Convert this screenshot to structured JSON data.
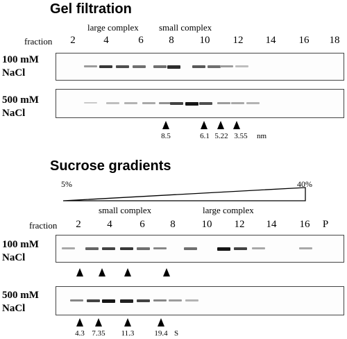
{
  "gel": {
    "title": "Gel filtration",
    "header_large": "large complex",
    "header_small": "small complex",
    "fraction_label": "fraction",
    "fractions": [
      "2",
      "4",
      "6",
      "8",
      "10",
      "12",
      "14",
      "16",
      "18"
    ],
    "lane1": {
      "line1": "100 mM",
      "line2": "NaCl"
    },
    "lane2": {
      "line1": "500 mM",
      "line2": "NaCl"
    },
    "markers": [
      "8.5",
      "6.1",
      "5.22",
      "3.55"
    ],
    "unit": "nm",
    "lane1_bands": [
      0.35,
      0.8,
      0.7,
      0.55,
      0.55,
      0.85,
      0.65,
      0.55,
      0.35,
      0.2
    ],
    "lane2_bands": [
      0.15,
      0.2,
      0.25,
      0.3,
      0.4,
      0.75,
      0.95,
      0.7,
      0.35,
      0.3,
      0.25
    ]
  },
  "sucrose": {
    "title": "Sucrose gradients",
    "gradient_low": "5%",
    "gradient_high": "40%",
    "header_small": "small complex",
    "header_large": "large complex",
    "fraction_label": "fraction",
    "fractions": [
      "2",
      "4",
      "6",
      "8",
      "10",
      "12",
      "14",
      "16",
      "P"
    ],
    "lane1": {
      "line1": "100 mM",
      "line2": "NaCl"
    },
    "lane2": {
      "line1": "500 mM",
      "line2": "NaCl"
    },
    "markers": [
      "4.3",
      "7.35",
      "11.3",
      "19.4"
    ],
    "unit": "S",
    "lane1_bands": [
      0.3,
      0.6,
      0.75,
      0.8,
      0.55,
      0.45,
      0.55,
      0.95,
      0.75,
      0.3,
      0.3
    ],
    "lane2_bands": [
      0.45,
      0.75,
      0.95,
      0.9,
      0.75,
      0.45,
      0.35,
      0.25
    ]
  }
}
